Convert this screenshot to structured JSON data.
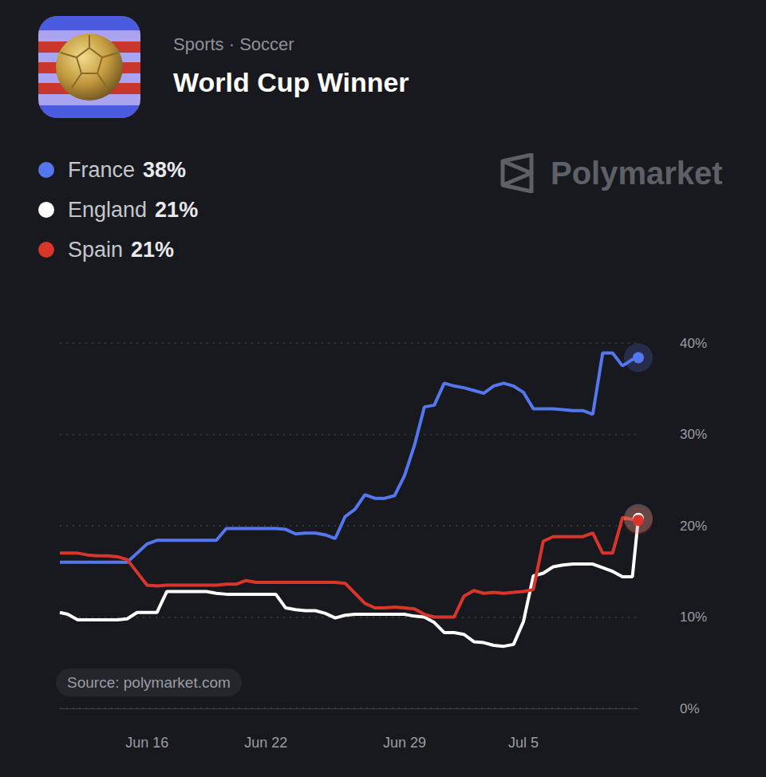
{
  "chart_data": {
    "type": "line",
    "title": "World Cup Winner",
    "subtitle": "Sports · Soccer",
    "watermark": "Polymarket",
    "source": "Source: polymarket.com",
    "legend": "upper left",
    "grid": true,
    "x": [
      11.6,
      12,
      12.5,
      13,
      13.5,
      14,
      14.5,
      15,
      15.5,
      16,
      16.5,
      17,
      17.5,
      18,
      18.5,
      19,
      19.5,
      20,
      20.5,
      21,
      21.5,
      22,
      22.5,
      23,
      23.5,
      24,
      24.5,
      25,
      25.5,
      26,
      26.5,
      27,
      27.5,
      28,
      28.5,
      29,
      29.5,
      30,
      30.5,
      31,
      31.5,
      32,
      32.5,
      33,
      33.5,
      34,
      34.5,
      35,
      35.5,
      36,
      36.5,
      37,
      37.5,
      38,
      38.5,
      39,
      39.5,
      40,
      40.5,
      40.8
    ],
    "xlim": [
      11.6,
      40.8
    ],
    "xticks": [
      {
        "value": 16,
        "label": "Jun 16"
      },
      {
        "value": 22,
        "label": "Jun 22"
      },
      {
        "value": 29,
        "label": "Jun 29"
      },
      {
        "value": 35,
        "label": "Jul 5"
      }
    ],
    "ylim": [
      0,
      40
    ],
    "yticks": [
      {
        "value": 0,
        "label": "0%"
      },
      {
        "value": 10,
        "label": "10%"
      },
      {
        "value": 20,
        "label": "20%"
      },
      {
        "value": 30,
        "label": "30%"
      },
      {
        "value": 40,
        "label": "40%"
      }
    ],
    "series": [
      {
        "name": "France",
        "current_label": "38%",
        "color": "#5577ee",
        "values": [
          16.0,
          16.0,
          16.0,
          16.0,
          16.0,
          16.0,
          16.0,
          16.0,
          17.0,
          18.0,
          18.4,
          18.4,
          18.4,
          18.4,
          18.4,
          18.4,
          18.4,
          19.7,
          19.7,
          19.7,
          19.7,
          19.7,
          19.7,
          19.6,
          19.1,
          19.2,
          19.2,
          19.0,
          18.6,
          21.0,
          21.8,
          23.4,
          23.0,
          23.0,
          23.3,
          25.5,
          28.8,
          33.0,
          33.2,
          35.6,
          35.3,
          35.1,
          34.8,
          34.5,
          35.3,
          35.6,
          35.3,
          34.6,
          32.8,
          32.8,
          32.8,
          32.7,
          32.6,
          32.6,
          32.2,
          38.9,
          38.9,
          37.5,
          38.2,
          38.4
        ]
      },
      {
        "name": "England",
        "current_label": "21%",
        "color": "#ffffff",
        "values": [
          10.5,
          10.3,
          9.7,
          9.7,
          9.7,
          9.7,
          9.7,
          9.8,
          10.5,
          10.5,
          10.5,
          12.8,
          12.8,
          12.8,
          12.8,
          12.8,
          12.6,
          12.5,
          12.5,
          12.5,
          12.5,
          12.5,
          12.5,
          11.0,
          10.8,
          10.7,
          10.7,
          10.4,
          9.9,
          10.2,
          10.3,
          10.3,
          10.3,
          10.3,
          10.3,
          10.3,
          10.1,
          10.0,
          9.4,
          8.3,
          8.3,
          8.1,
          7.3,
          7.2,
          6.9,
          6.8,
          7.0,
          9.5,
          14.5,
          14.8,
          15.5,
          15.7,
          15.8,
          15.8,
          15.8,
          15.4,
          15.0,
          14.4,
          14.4,
          20.8
        ]
      },
      {
        "name": "Spain",
        "current_label": "21%",
        "color": "#d8352b",
        "values": [
          17.0,
          17.0,
          17.0,
          16.8,
          16.7,
          16.7,
          16.6,
          16.3,
          14.9,
          13.5,
          13.4,
          13.5,
          13.5,
          13.5,
          13.5,
          13.5,
          13.5,
          13.6,
          13.6,
          14.0,
          13.8,
          13.8,
          13.8,
          13.8,
          13.8,
          13.8,
          13.8,
          13.8,
          13.8,
          13.7,
          12.6,
          11.5,
          11.0,
          11.0,
          11.1,
          11.0,
          10.9,
          10.3,
          10.0,
          10.0,
          10.0,
          12.3,
          12.9,
          12.6,
          12.7,
          12.6,
          12.7,
          12.8,
          13.0,
          18.3,
          18.8,
          18.8,
          18.8,
          18.8,
          19.2,
          17.0,
          17.0,
          20.9,
          20.7,
          20.6
        ]
      }
    ]
  }
}
